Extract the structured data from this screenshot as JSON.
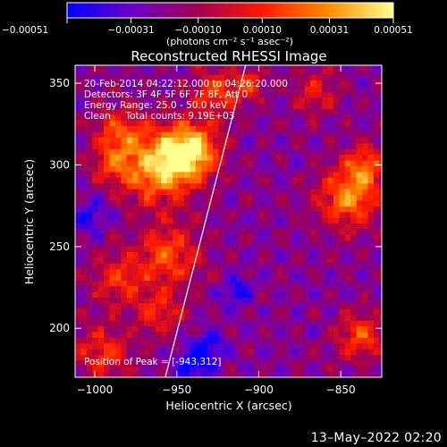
{
  "chart_data": {
    "type": "heatmap",
    "title": "Reconstructed RHESSI Image",
    "xlabel": "Heliocentric X (arcsec)",
    "ylabel": "Heliocentric Y (arcsec)",
    "xlim": [
      -1012,
      -825
    ],
    "ylim": [
      170,
      361
    ],
    "x_ticks": [
      {
        "value": -1000,
        "label": "−1000"
      },
      {
        "value": -950,
        "label": "−950"
      },
      {
        "value": -900,
        "label": "−900"
      },
      {
        "value": -850,
        "label": "−850"
      }
    ],
    "y_ticks": [
      {
        "value": 200,
        "label": "200"
      },
      {
        "value": 250,
        "label": "250"
      },
      {
        "value": 300,
        "label": "300"
      },
      {
        "value": 350,
        "label": "350"
      }
    ],
    "colorbar": {
      "range": [
        -0.00051,
        0.00051
      ],
      "ticks": [
        {
          "value": -0.00051,
          "label": "−0.00051"
        },
        {
          "value": -0.00031,
          "label": "−0.00031"
        },
        {
          "value": -0.0001,
          "label": "−0.00010"
        },
        {
          "value": 0.0001,
          "label": "0.00010"
        },
        {
          "value": 0.00031,
          "label": "0.00031"
        },
        {
          "value": 0.00051,
          "label": "0.00051"
        }
      ],
      "unit_label": "(photons cm⁻² s⁻¹ asec⁻²)",
      "colormap": [
        "#0000ff",
        "#6a00c8",
        "#a00050",
        "#ff1a00",
        "#ff8c00",
        "#ffff90"
      ]
    },
    "info_lines": [
      "20-Feb-2014 04:22:12.000 to 04:26:20.000",
      "Detectors: 3F 4F 5F 6F 7F 8F, Att 0",
      "Energy Range: 25.0 - 50.0 keV",
      "Clean     Total counts: 9.19E+03"
    ],
    "peak_label": "Position of Peak = [-943,312]",
    "limb_line": [
      [
        -957,
        170
      ],
      [
        -908,
        361
      ]
    ],
    "intensity_sources": [
      {
        "x": -942,
        "y": 309,
        "sigma": 12,
        "amp": 1.0
      },
      {
        "x": -962,
        "y": 298,
        "sigma": 15,
        "amp": 0.8
      },
      {
        "x": -985,
        "y": 320,
        "sigma": 11,
        "amp": 0.5
      },
      {
        "x": -990,
        "y": 300,
        "sigma": 9,
        "amp": 0.35
      },
      {
        "x": -955,
        "y": 245,
        "sigma": 13,
        "amp": 0.55
      },
      {
        "x": -985,
        "y": 230,
        "sigma": 12,
        "amp": 0.45
      },
      {
        "x": -960,
        "y": 210,
        "sigma": 10,
        "amp": 0.4
      },
      {
        "x": -995,
        "y": 185,
        "sigma": 12,
        "amp": 0.45
      },
      {
        "x": -925,
        "y": 345,
        "sigma": 10,
        "amp": 0.55
      },
      {
        "x": -905,
        "y": 350,
        "sigma": 7,
        "amp": 0.4
      },
      {
        "x": -845,
        "y": 280,
        "sigma": 13,
        "amp": 0.7
      },
      {
        "x": -835,
        "y": 300,
        "sigma": 9,
        "amp": 0.55
      },
      {
        "x": -838,
        "y": 195,
        "sigma": 10,
        "amp": 0.55
      },
      {
        "x": -865,
        "y": 345,
        "sigma": 10,
        "amp": 0.35
      },
      {
        "x": -930,
        "y": 190,
        "sigma": 7,
        "amp": -0.35
      },
      {
        "x": -940,
        "y": 178,
        "sigma": 8,
        "amp": -0.45
      },
      {
        "x": -913,
        "y": 223,
        "sigma": 6,
        "amp": -0.4
      },
      {
        "x": -1003,
        "y": 270,
        "sigma": 8,
        "amp": -0.3
      }
    ]
  },
  "footer": {
    "timestamp": "13–May–2022 02:20"
  }
}
